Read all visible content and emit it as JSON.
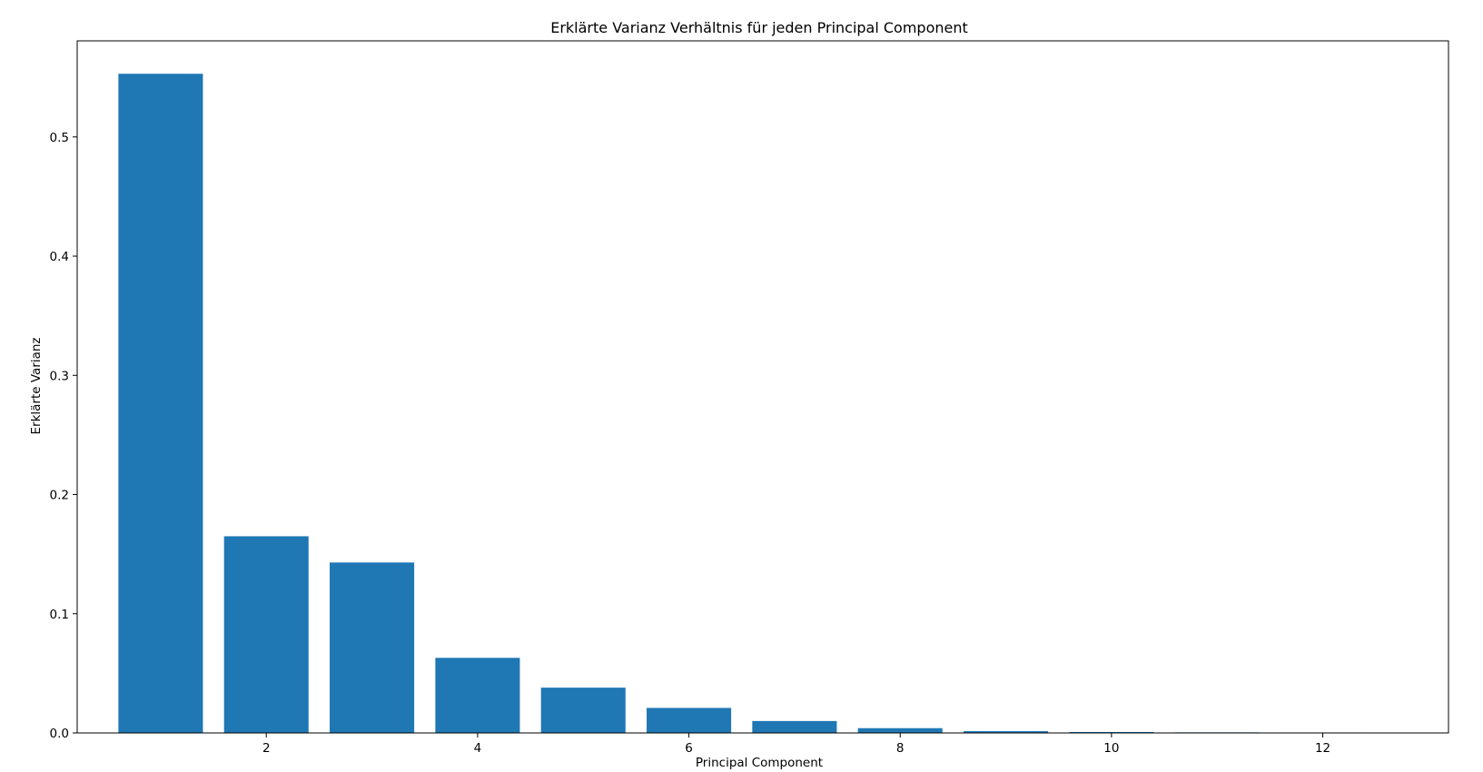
{
  "chart_data": {
    "type": "bar",
    "title": "Erklärte Varianz Verhältnis für jeden Principal Component",
    "xlabel": "Principal Component",
    "ylabel": "Erklärte Varianz",
    "x": [
      1,
      2,
      3,
      4,
      5,
      6,
      7,
      8,
      9,
      10,
      11,
      12
    ],
    "values": [
      0.553,
      0.165,
      0.143,
      0.063,
      0.038,
      0.021,
      0.01,
      0.004,
      0.0015,
      0.0008,
      0.0005,
      0.0004
    ],
    "xlim": [
      0.21,
      13.19
    ],
    "ylim": [
      0,
      0.5806
    ],
    "xticks": [
      2,
      4,
      6,
      8,
      10,
      12
    ],
    "xtick_labels": [
      "2",
      "4",
      "6",
      "8",
      "10",
      "12"
    ],
    "yticks": [
      0.0,
      0.1,
      0.2,
      0.3,
      0.4,
      0.5
    ],
    "ytick_labels": [
      "0.0",
      "0.1",
      "0.2",
      "0.3",
      "0.4",
      "0.5"
    ],
    "bar_width": 0.8,
    "bar_color": "#1f77b4",
    "grid": false,
    "legend": "none"
  }
}
